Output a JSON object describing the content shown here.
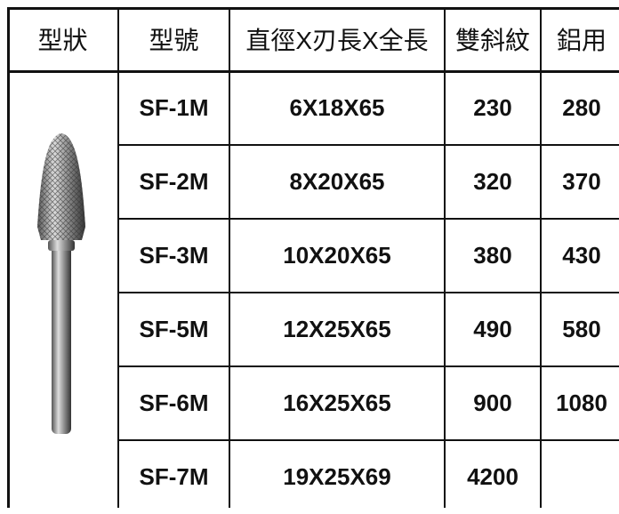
{
  "table": {
    "header": [
      "型狀",
      "型號",
      "直徑X刃長X全長",
      "雙斜紋",
      "鋁用"
    ],
    "rows": [
      [
        "SF-1M",
        "6X18X65",
        230,
        280
      ],
      [
        "SF-2M",
        "8X20X65",
        320,
        370
      ],
      [
        "SF-3M",
        "10X20X65",
        380,
        430
      ],
      [
        "SF-5M",
        "12X25X65",
        490,
        580
      ],
      [
        "SF-6M",
        "16X25X65",
        900,
        1080
      ],
      [
        "SF-7M",
        "19X25X69",
        4200
      ]
    ]
  }
}
